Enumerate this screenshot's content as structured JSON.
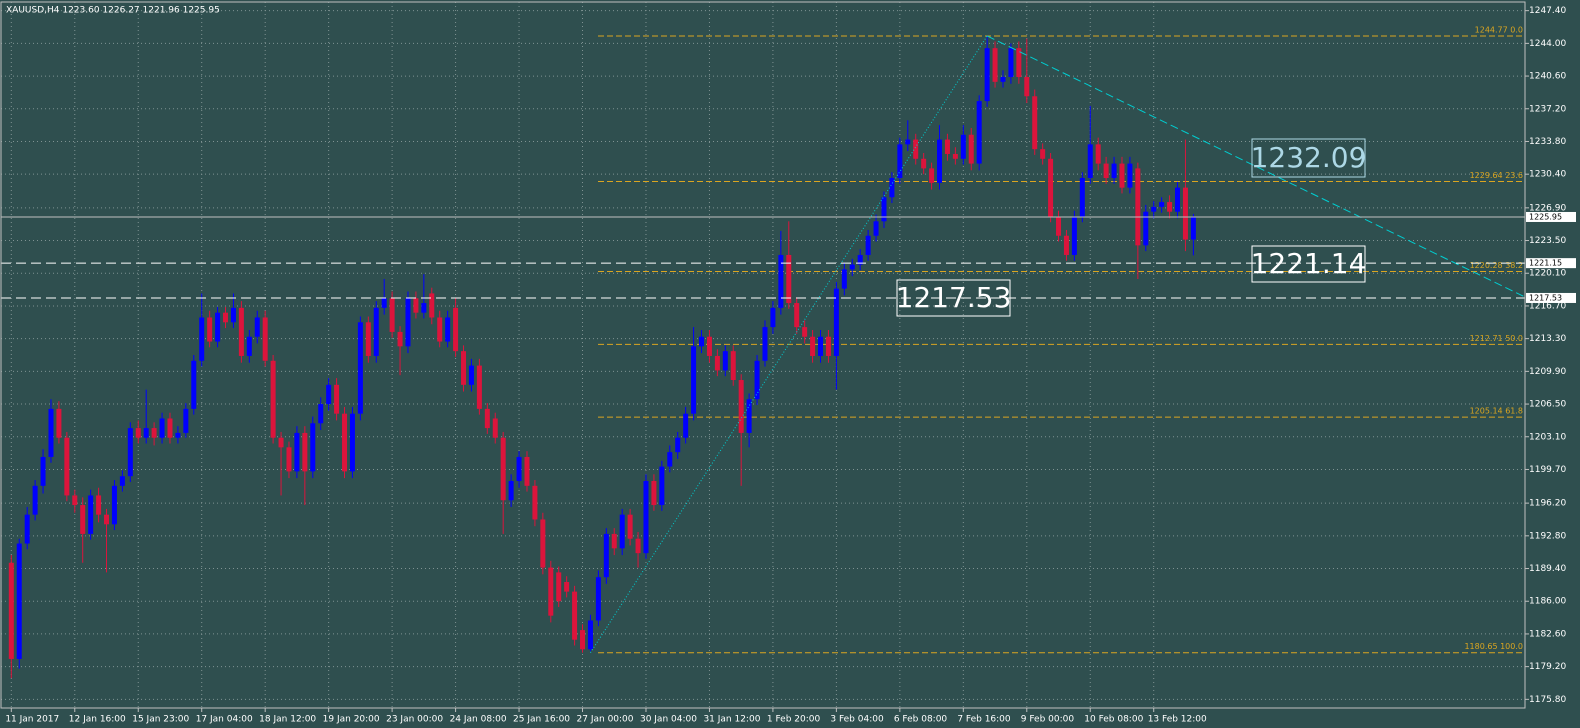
{
  "chart_data": {
    "type": "candlestick",
    "title": "XAUUSD,H4  1223.60 1226.27 1221.96 1225.95",
    "up_color": "#0000ff",
    "down_color": "#dc143c",
    "grid": true,
    "ylim": [
      1174.9,
      1248.3
    ],
    "xlim": [
      -1.3,
      190.8
    ],
    "yticks": [
      {
        "value": 1247.4,
        "label": "1247.40"
      },
      {
        "value": 1244.0,
        "label": "1244.00"
      },
      {
        "value": 1240.6,
        "label": "1240.60"
      },
      {
        "value": 1237.2,
        "label": "1237.20"
      },
      {
        "value": 1233.8,
        "label": "1233.80"
      },
      {
        "value": 1230.4,
        "label": "1230.40"
      },
      {
        "value": 1226.9,
        "label": "1226.90"
      },
      {
        "value": 1223.5,
        "label": "1223.50"
      },
      {
        "value": 1220.1,
        "label": "1220.10"
      },
      {
        "value": 1216.7,
        "label": "1216.70"
      },
      {
        "value": 1213.3,
        "label": "1213.30"
      },
      {
        "value": 1209.9,
        "label": "1209.90"
      },
      {
        "value": 1206.5,
        "label": "1206.50"
      },
      {
        "value": 1203.1,
        "label": "1203.10"
      },
      {
        "value": 1199.7,
        "label": "1199.70"
      },
      {
        "value": 1196.2,
        "label": "1196.20"
      },
      {
        "value": 1192.8,
        "label": "1192.80"
      },
      {
        "value": 1189.4,
        "label": "1189.40"
      },
      {
        "value": 1186.0,
        "label": "1186.00"
      },
      {
        "value": 1182.6,
        "label": "1182.60"
      },
      {
        "value": 1179.2,
        "label": "1179.20"
      },
      {
        "value": 1175.8,
        "label": "1175.80"
      }
    ],
    "xticks": [
      {
        "value": 0,
        "label": "11 Jan 2017"
      },
      {
        "value": 8,
        "label": "12 Jan 16:00"
      },
      {
        "value": 16,
        "label": "15 Jan 23:00"
      },
      {
        "value": 24,
        "label": "17 Jan 04:00"
      },
      {
        "value": 32,
        "label": "18 Jan 12:00"
      },
      {
        "value": 40,
        "label": "19 Jan 20:00"
      },
      {
        "value": 48,
        "label": "23 Jan 00:00"
      },
      {
        "value": 56,
        "label": "24 Jan 08:00"
      },
      {
        "value": 64,
        "label": "25 Jan 16:00"
      },
      {
        "value": 72,
        "label": "27 Jan 00:00"
      },
      {
        "value": 80,
        "label": "30 Jan 04:00"
      },
      {
        "value": 88,
        "label": "31 Jan 12:00"
      },
      {
        "value": 96,
        "label": "1 Feb 20:00"
      },
      {
        "value": 104,
        "label": "3 Feb 04:00"
      },
      {
        "value": 112,
        "label": "6 Feb 08:00"
      },
      {
        "value": 120,
        "label": "7 Feb 16:00"
      },
      {
        "value": 128,
        "label": "9 Feb 00:00"
      },
      {
        "value": 136,
        "label": "10 Feb 08:00"
      },
      {
        "value": 144,
        "label": "13 Feb 12:00"
      }
    ],
    "ohlc": [
      [
        1190,
        1190.8,
        1178,
        1180
      ],
      [
        1180,
        1192.5,
        1179,
        1192
      ],
      [
        1192,
        1195.8,
        1191.4,
        1195
      ],
      [
        1195,
        1198.6,
        1194.4,
        1198
      ],
      [
        1198,
        1201.8,
        1197.2,
        1201
      ],
      [
        1201,
        1207,
        1200.4,
        1206
      ],
      [
        1206,
        1206.8,
        1202.4,
        1203
      ],
      [
        1203,
        1203.6,
        1196.4,
        1197
      ],
      [
        1197,
        1197.6,
        1195.2,
        1196
      ],
      [
        1196,
        1196.8,
        1190,
        1193
      ],
      [
        1193,
        1197.6,
        1192.4,
        1197
      ],
      [
        1197,
        1197.8,
        1194.2,
        1195
      ],
      [
        1195,
        1195.6,
        1189,
        1194
      ],
      [
        1194,
        1198.6,
        1193.4,
        1198
      ],
      [
        1198,
        1199.6,
        1197.4,
        1199
      ],
      [
        1199,
        1204.6,
        1198.4,
        1204
      ],
      [
        1204,
        1204.8,
        1202.4,
        1203
      ],
      [
        1203,
        1208,
        1202.4,
        1204
      ],
      [
        1204,
        1204.6,
        1202.2,
        1203
      ],
      [
        1203,
        1205.6,
        1202.4,
        1205
      ],
      [
        1205,
        1205.6,
        1202.4,
        1203
      ],
      [
        1203,
        1204.2,
        1202.4,
        1203.5
      ],
      [
        1203.5,
        1206.6,
        1203,
        1206
      ],
      [
        1206,
        1211.6,
        1205.4,
        1211
      ],
      [
        1211,
        1218,
        1210.4,
        1215.5
      ],
      [
        1215.5,
        1216.2,
        1212.4,
        1213
      ],
      [
        1213,
        1216.6,
        1212.4,
        1216
      ],
      [
        1216,
        1216.6,
        1214.4,
        1215
      ],
      [
        1215,
        1218,
        1214.4,
        1216.5
      ],
      [
        1216.5,
        1217.2,
        1210.8,
        1211.5
      ],
      [
        1211.5,
        1214.2,
        1210.8,
        1213.5
      ],
      [
        1213.5,
        1216.2,
        1212.8,
        1215.5
      ],
      [
        1215.5,
        1216.2,
        1210.4,
        1211
      ],
      [
        1211,
        1211.6,
        1202.4,
        1203
      ],
      [
        1203,
        1203.6,
        1197,
        1202
      ],
      [
        1202,
        1202.6,
        1198.8,
        1199.5
      ],
      [
        1199.5,
        1204.2,
        1198.8,
        1203.5
      ],
      [
        1203.5,
        1204.2,
        1196,
        1199.5
      ],
      [
        1199.5,
        1205.2,
        1198.8,
        1204.5
      ],
      [
        1204.5,
        1207.2,
        1203.8,
        1206.5
      ],
      [
        1206.5,
        1209.2,
        1205.8,
        1208.5
      ],
      [
        1208.5,
        1209.2,
        1204.8,
        1205.5
      ],
      [
        1205.5,
        1206.2,
        1198.8,
        1199.5
      ],
      [
        1199.5,
        1206.2,
        1198.8,
        1205.5
      ],
      [
        1205.5,
        1215.6,
        1204.8,
        1215
      ],
      [
        1215,
        1215.6,
        1210.8,
        1211.5
      ],
      [
        1211.5,
        1217.2,
        1210.8,
        1216.5
      ],
      [
        1216.5,
        1219.5,
        1215.8,
        1217.5
      ],
      [
        1217.5,
        1218.2,
        1213.4,
        1214
      ],
      [
        1214,
        1214.6,
        1209.5,
        1212.5
      ],
      [
        1212.5,
        1218.2,
        1211.8,
        1217.5
      ],
      [
        1217.5,
        1218.2,
        1215.4,
        1216
      ],
      [
        1216,
        1220,
        1215.4,
        1217
      ],
      [
        1218,
        1218.6,
        1214.8,
        1215.5
      ],
      [
        1215.5,
        1216.2,
        1212.4,
        1213
      ],
      [
        1213,
        1216.2,
        1212.4,
        1215.5
      ],
      [
        1216.5,
        1217.5,
        1211.4,
        1212
      ],
      [
        1212,
        1212.6,
        1207.8,
        1208.5
      ],
      [
        1208.5,
        1211.2,
        1207.8,
        1210.5
      ],
      [
        1210.5,
        1211.2,
        1205.4,
        1206
      ],
      [
        1206,
        1206.6,
        1203.4,
        1204
      ],
      [
        1205,
        1205.6,
        1202.4,
        1203
      ],
      [
        1203,
        1203.6,
        1193,
        1196.5
      ],
      [
        1196.5,
        1199.2,
        1195.8,
        1198.5
      ],
      [
        1198.5,
        1201.6,
        1197.8,
        1201
      ],
      [
        1201,
        1201.6,
        1197.4,
        1198
      ],
      [
        1198,
        1198.6,
        1193.8,
        1194.5
      ],
      [
        1194.5,
        1195.2,
        1188.8,
        1189.5
      ],
      [
        1189.5,
        1190.2,
        1183.8,
        1184.5
      ],
      [
        1189,
        1189.6,
        1185.4,
        1186
      ],
      [
        1188,
        1188.6,
        1186.4,
        1187
      ],
      [
        1187,
        1187.6,
        1181.4,
        1182
      ],
      [
        1183,
        1183.6,
        1180.65,
        1181
      ],
      [
        1181,
        1184.6,
        1180.8,
        1184
      ],
      [
        1184,
        1189.2,
        1183.4,
        1188.5
      ],
      [
        1188.5,
        1193.6,
        1187.8,
        1193
      ],
      [
        1193,
        1193.6,
        1190.8,
        1191.5
      ],
      [
        1191.5,
        1195.6,
        1190.8,
        1195
      ],
      [
        1195,
        1195.6,
        1191.8,
        1192.5
      ],
      [
        1192.5,
        1193.2,
        1189.5,
        1191
      ],
      [
        1191,
        1199.2,
        1190.4,
        1198.5
      ],
      [
        1198.5,
        1199.2,
        1195.4,
        1196
      ],
      [
        1196,
        1200.6,
        1195.4,
        1200
      ],
      [
        1200,
        1202.2,
        1199.4,
        1201.5
      ],
      [
        1201.5,
        1203.6,
        1200.8,
        1203
      ],
      [
        1203,
        1206.2,
        1202.4,
        1205.5
      ],
      [
        1205.5,
        1214.5,
        1204.8,
        1212.5
      ],
      [
        1212.5,
        1214.2,
        1211.8,
        1213.5
      ],
      [
        1213.5,
        1214.2,
        1210.8,
        1211.5
      ],
      [
        1211.5,
        1212.2,
        1209.4,
        1210
      ],
      [
        1210,
        1212.6,
        1209.4,
        1212
      ],
      [
        1212,
        1212.6,
        1208.4,
        1209
      ],
      [
        1209,
        1209.6,
        1198,
        1203.5
      ],
      [
        1203.5,
        1207.6,
        1202,
        1207
      ],
      [
        1207,
        1211.6,
        1206.4,
        1211
      ],
      [
        1211,
        1215.2,
        1210.4,
        1214.5
      ],
      [
        1214.5,
        1217.2,
        1213.8,
        1216.5
      ],
      [
        1216.5,
        1224.5,
        1215.8,
        1222
      ],
      [
        1222,
        1225.5,
        1216.4,
        1217
      ],
      [
        1217,
        1217.6,
        1213.8,
        1214.5
      ],
      [
        1214.5,
        1215.2,
        1212.8,
        1213.5
      ],
      [
        1213.5,
        1214.2,
        1210.8,
        1211.5
      ],
      [
        1211.5,
        1214.2,
        1210.8,
        1213.5
      ],
      [
        1213.5,
        1214.2,
        1210.8,
        1211.5
      ],
      [
        1211.5,
        1219.2,
        1208,
        1218.5
      ],
      [
        1218.5,
        1221.2,
        1217.8,
        1220.5
      ],
      [
        1220.5,
        1221.6,
        1219.8,
        1221
      ],
      [
        1221,
        1222.6,
        1220.4,
        1222
      ],
      [
        1222,
        1224.6,
        1221.4,
        1224
      ],
      [
        1224,
        1226.2,
        1223.4,
        1225.5
      ],
      [
        1225.5,
        1228.6,
        1224.8,
        1228
      ],
      [
        1228,
        1230.6,
        1227.4,
        1230
      ],
      [
        1230,
        1234.2,
        1229.4,
        1233.5
      ],
      [
        1233.5,
        1236,
        1232.8,
        1234
      ],
      [
        1234,
        1234.6,
        1231.4,
        1232
      ],
      [
        1232,
        1232.6,
        1230.4,
        1231
      ],
      [
        1231,
        1231.6,
        1228.8,
        1229.5
      ],
      [
        1229.5,
        1235.5,
        1228.8,
        1234
      ],
      [
        1234,
        1234.6,
        1231.8,
        1232.5
      ],
      [
        1232.5,
        1233.2,
        1231.4,
        1232
      ],
      [
        1232,
        1235.5,
        1231.4,
        1234.5
      ],
      [
        1234.5,
        1235.2,
        1230.8,
        1231.5
      ],
      [
        1231.5,
        1238.6,
        1230.8,
        1238
      ],
      [
        1238,
        1244.77,
        1237.4,
        1243.5
      ],
      [
        1243.5,
        1244.2,
        1239.4,
        1240
      ],
      [
        1240,
        1241.2,
        1239.4,
        1240.5
      ],
      [
        1240.5,
        1244,
        1239.8,
        1243.5
      ],
      [
        1243.5,
        1244.2,
        1239.8,
        1240.5
      ],
      [
        1240.5,
        1244.5,
        1237.8,
        1238.5
      ],
      [
        1238.5,
        1239.2,
        1232.4,
        1233
      ],
      [
        1233,
        1233.6,
        1231.4,
        1232
      ],
      [
        1232,
        1232.6,
        1225.4,
        1226
      ],
      [
        1226,
        1226.6,
        1223.4,
        1224
      ],
      [
        1224,
        1224.6,
        1221.4,
        1222
      ],
      [
        1222,
        1226.6,
        1221.4,
        1226
      ],
      [
        1226,
        1230.6,
        1225.4,
        1230
      ],
      [
        1230,
        1237.5,
        1229.4,
        1233.5
      ],
      [
        1233.5,
        1234.2,
        1230.8,
        1231.5
      ],
      [
        1231.5,
        1232.2,
        1229.4,
        1230
      ],
      [
        1230,
        1232.2,
        1229.4,
        1231.5
      ],
      [
        1231.5,
        1232.2,
        1228.4,
        1229
      ],
      [
        1229,
        1232.2,
        1228.4,
        1231.5
      ],
      [
        1231,
        1231.6,
        1219.5,
        1223
      ],
      [
        1223,
        1227.2,
        1222.4,
        1226.5
      ],
      [
        1226.5,
        1227.6,
        1225.8,
        1227
      ],
      [
        1227,
        1228,
        1226.4,
        1227.5
      ],
      [
        1227.5,
        1228.2,
        1225.8,
        1226.5
      ],
      [
        1226.5,
        1229.6,
        1225.8,
        1229
      ],
      [
        1229,
        1234,
        1222.4,
        1223.6
      ],
      [
        1223.6,
        1226.27,
        1221.96,
        1225.95
      ]
    ],
    "bid": 1225.95,
    "hlines": [
      1221.15,
      1217.53
    ],
    "fibo": [
      {
        "value": 1244.77,
        "label": "1244.77 0.0"
      },
      {
        "value": 1229.64,
        "label": "1229.64 23.6"
      },
      {
        "value": 1220.28,
        "label": "1220.28 38.2"
      },
      {
        "value": 1212.71,
        "label": "1212.71 50.0"
      },
      {
        "value": 1205.14,
        "label": "1205.14 61.8"
      },
      {
        "value": 1180.65,
        "label": "1180.65 100.0"
      }
    ],
    "fibo_color": "#daa520",
    "trend_color": "#00ced1",
    "annotations": [
      {
        "text": "1232.09",
        "color": "#add8e6"
      },
      {
        "text": "1221.14",
        "color": "#ffffff"
      },
      {
        "text": "1217.53",
        "color": "#ffffff"
      }
    ]
  }
}
